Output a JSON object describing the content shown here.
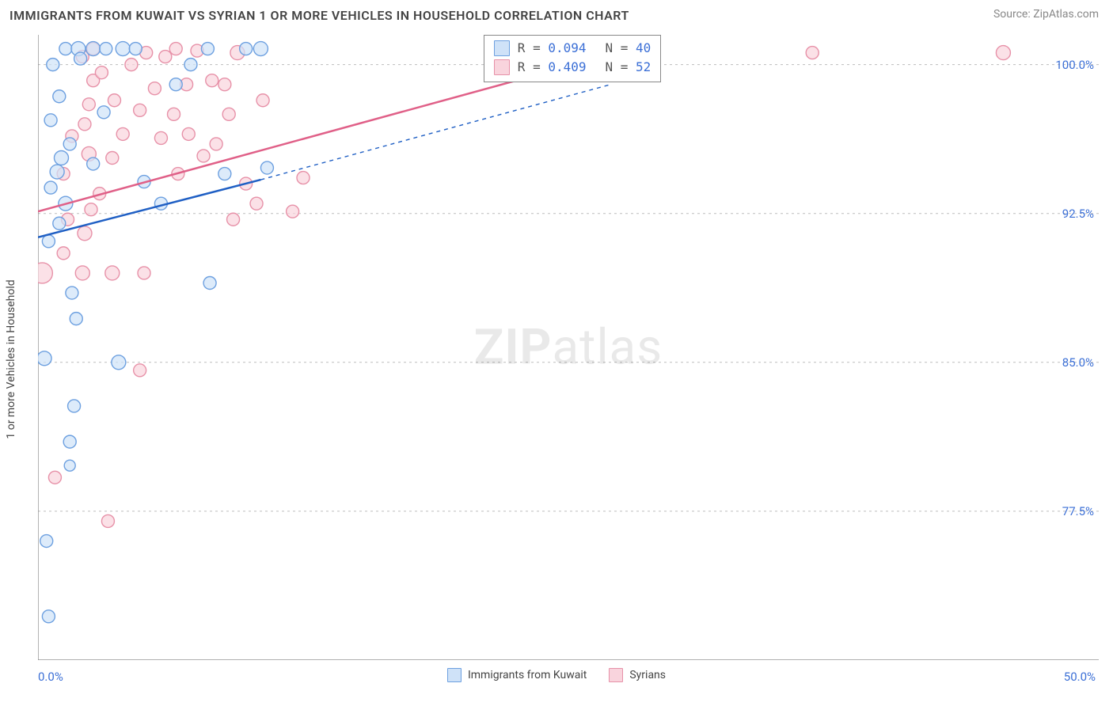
{
  "header": {
    "title": "IMMIGRANTS FROM KUWAIT VS SYRIAN 1 OR MORE VEHICLES IN HOUSEHOLD CORRELATION CHART",
    "source": "Source: ZipAtlas.com"
  },
  "axes": {
    "y_title": "1 or more Vehicles in Household",
    "x_min_label": "0.0%",
    "x_max_label": "50.0%",
    "y_ticks": [
      {
        "v": 100.0,
        "label": "100.0%"
      },
      {
        "v": 92.5,
        "label": "92.5%"
      },
      {
        "v": 85.0,
        "label": "85.0%"
      },
      {
        "v": 77.5,
        "label": "77.5%"
      }
    ],
    "x_ticks": [
      0,
      5,
      10,
      15,
      20,
      25,
      30,
      35,
      40,
      45,
      50
    ],
    "xlim": [
      0,
      50
    ],
    "ylim": [
      70,
      101.5
    ],
    "grid_color": "#bdbdbd",
    "axis_color": "#808080",
    "tick_label_color": "#3b6fd6",
    "tick_fontsize": 15
  },
  "watermark": {
    "zip": "ZIP",
    "atlas": "atlas"
  },
  "series": {
    "kuwait": {
      "label": "Immigrants from Kuwait",
      "fill": "#cfe2f8",
      "stroke": "#6da0e0",
      "line_stroke": "#1f5fc4",
      "r_value": "0.094",
      "n_value": "40",
      "trend": {
        "x1": 0,
        "y1": 91.3,
        "x2": 10.5,
        "y2": 94.2,
        "x2_dash": 27,
        "y2_dash": 99.0
      },
      "points": [
        {
          "x": 0.4,
          "y": 76.0,
          "r": 8
        },
        {
          "x": 0.5,
          "y": 72.2,
          "r": 8
        },
        {
          "x": 1.5,
          "y": 79.8,
          "r": 7
        },
        {
          "x": 1.5,
          "y": 81.0,
          "r": 8
        },
        {
          "x": 1.7,
          "y": 82.8,
          "r": 8
        },
        {
          "x": 0.3,
          "y": 85.2,
          "r": 9
        },
        {
          "x": 1.8,
          "y": 87.2,
          "r": 8
        },
        {
          "x": 1.6,
          "y": 88.5,
          "r": 8
        },
        {
          "x": 0.5,
          "y": 91.1,
          "r": 8
        },
        {
          "x": 1.0,
          "y": 92.0,
          "r": 8
        },
        {
          "x": 1.3,
          "y": 93.0,
          "r": 9
        },
        {
          "x": 0.6,
          "y": 93.8,
          "r": 8
        },
        {
          "x": 0.9,
          "y": 94.6,
          "r": 9
        },
        {
          "x": 1.1,
          "y": 95.3,
          "r": 9
        },
        {
          "x": 1.5,
          "y": 96.0,
          "r": 8
        },
        {
          "x": 0.6,
          "y": 97.2,
          "r": 8
        },
        {
          "x": 1.0,
          "y": 98.4,
          "r": 8
        },
        {
          "x": 0.7,
          "y": 100.0,
          "r": 8
        },
        {
          "x": 1.3,
          "y": 100.8,
          "r": 8
        },
        {
          "x": 1.9,
          "y": 100.8,
          "r": 9
        },
        {
          "x": 2.6,
          "y": 100.8,
          "r": 9
        },
        {
          "x": 2.0,
          "y": 100.3,
          "r": 8
        },
        {
          "x": 2.6,
          "y": 95.0,
          "r": 8
        },
        {
          "x": 3.2,
          "y": 100.8,
          "r": 8
        },
        {
          "x": 4.0,
          "y": 100.8,
          "r": 9
        },
        {
          "x": 3.1,
          "y": 97.6,
          "r": 8
        },
        {
          "x": 3.8,
          "y": 85.0,
          "r": 9
        },
        {
          "x": 4.6,
          "y": 100.8,
          "r": 8
        },
        {
          "x": 5.0,
          "y": 94.1,
          "r": 8
        },
        {
          "x": 5.8,
          "y": 93.0,
          "r": 8
        },
        {
          "x": 6.5,
          "y": 99.0,
          "r": 8
        },
        {
          "x": 7.2,
          "y": 100.0,
          "r": 8
        },
        {
          "x": 8.0,
          "y": 100.8,
          "r": 8
        },
        {
          "x": 8.1,
          "y": 89.0,
          "r": 8
        },
        {
          "x": 8.8,
          "y": 94.5,
          "r": 8
        },
        {
          "x": 9.8,
          "y": 100.8,
          "r": 8
        },
        {
          "x": 10.5,
          "y": 100.8,
          "r": 9
        },
        {
          "x": 10.8,
          "y": 94.8,
          "r": 8
        }
      ]
    },
    "syrians": {
      "label": "Syrians",
      "fill": "#f9d4dd",
      "stroke": "#e791a8",
      "line_stroke": "#e06088",
      "r_value": "0.409",
      "n_value": "52",
      "trend": {
        "x1": 0,
        "y1": 92.6,
        "x2": 27,
        "y2": 100.5
      },
      "points": [
        {
          "x": 0.2,
          "y": 89.5,
          "r": 13
        },
        {
          "x": 0.8,
          "y": 79.2,
          "r": 8
        },
        {
          "x": 1.2,
          "y": 90.5,
          "r": 8
        },
        {
          "x": 1.4,
          "y": 92.2,
          "r": 8
        },
        {
          "x": 1.2,
          "y": 94.5,
          "r": 8
        },
        {
          "x": 1.6,
          "y": 96.4,
          "r": 8
        },
        {
          "x": 2.1,
          "y": 89.5,
          "r": 9
        },
        {
          "x": 2.2,
          "y": 91.5,
          "r": 9
        },
        {
          "x": 2.4,
          "y": 98.0,
          "r": 8
        },
        {
          "x": 2.5,
          "y": 92.7,
          "r": 8
        },
        {
          "x": 2.4,
          "y": 95.5,
          "r": 9
        },
        {
          "x": 2.2,
          "y": 97.0,
          "r": 8
        },
        {
          "x": 2.6,
          "y": 99.2,
          "r": 8
        },
        {
          "x": 2.9,
          "y": 93.5,
          "r": 8
        },
        {
          "x": 3.0,
          "y": 99.6,
          "r": 8
        },
        {
          "x": 2.1,
          "y": 100.4,
          "r": 8
        },
        {
          "x": 2.6,
          "y": 100.8,
          "r": 8
        },
        {
          "x": 3.3,
          "y": 77.0,
          "r": 8
        },
        {
          "x": 3.5,
          "y": 95.3,
          "r": 8
        },
        {
          "x": 3.6,
          "y": 98.2,
          "r": 8
        },
        {
          "x": 3.5,
          "y": 89.5,
          "r": 9
        },
        {
          "x": 4.0,
          "y": 96.5,
          "r": 8
        },
        {
          "x": 4.4,
          "y": 100.0,
          "r": 8
        },
        {
          "x": 4.8,
          "y": 84.6,
          "r": 8
        },
        {
          "x": 4.8,
          "y": 97.7,
          "r": 8
        },
        {
          "x": 5.1,
          "y": 100.6,
          "r": 8
        },
        {
          "x": 5.5,
          "y": 98.8,
          "r": 8
        },
        {
          "x": 5.0,
          "y": 89.5,
          "r": 8
        },
        {
          "x": 5.8,
          "y": 96.3,
          "r": 8
        },
        {
          "x": 6.0,
          "y": 100.4,
          "r": 8
        },
        {
          "x": 6.4,
          "y": 97.5,
          "r": 8
        },
        {
          "x": 6.6,
          "y": 94.5,
          "r": 8
        },
        {
          "x": 6.5,
          "y": 100.8,
          "r": 8
        },
        {
          "x": 7.0,
          "y": 99.0,
          "r": 8
        },
        {
          "x": 7.5,
          "y": 100.7,
          "r": 8
        },
        {
          "x": 7.1,
          "y": 96.5,
          "r": 8
        },
        {
          "x": 7.8,
          "y": 95.4,
          "r": 8
        },
        {
          "x": 8.2,
          "y": 99.2,
          "r": 8
        },
        {
          "x": 8.8,
          "y": 99.0,
          "r": 8
        },
        {
          "x": 8.4,
          "y": 96.0,
          "r": 8
        },
        {
          "x": 9.2,
          "y": 92.2,
          "r": 8
        },
        {
          "x": 9.0,
          "y": 97.5,
          "r": 8
        },
        {
          "x": 9.4,
          "y": 100.6,
          "r": 9
        },
        {
          "x": 9.8,
          "y": 94.0,
          "r": 8
        },
        {
          "x": 10.3,
          "y": 93.0,
          "r": 8
        },
        {
          "x": 10.6,
          "y": 98.2,
          "r": 8
        },
        {
          "x": 12.0,
          "y": 92.6,
          "r": 8
        },
        {
          "x": 12.5,
          "y": 94.3,
          "r": 8
        },
        {
          "x": 27.0,
          "y": 100.8,
          "r": 9
        },
        {
          "x": 36.5,
          "y": 100.6,
          "r": 8
        },
        {
          "x": 45.5,
          "y": 100.6,
          "r": 9
        }
      ]
    }
  },
  "legend_stats": {
    "r_label_prefix": "R = ",
    "n_label_prefix": "N = "
  }
}
